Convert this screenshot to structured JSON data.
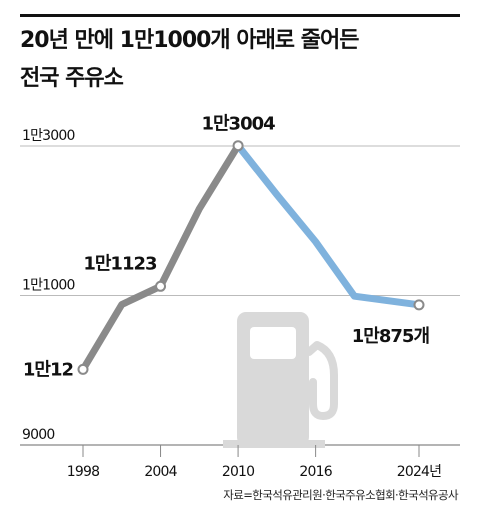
{
  "title_line1": "20년 만에 1만1000개 아래로 줄어든",
  "title_line2": "전국 주유소",
  "source": "자료=한국석유관리원·한국주유소협회·한국석유공사",
  "colors": {
    "text": "#111111",
    "grid": "#bbbbbb",
    "gray_line": "#8a8a8a",
    "blue_line": "#7fb2dd",
    "pump": "#d9d9d9"
  },
  "chart_data": {
    "type": "line",
    "title": "20년 만에 1만1000개 아래로 줄어든 전국 주유소",
    "xlabel": "",
    "ylabel": "",
    "xlim": [
      1998,
      2024
    ],
    "ylim": [
      9000,
      13000
    ],
    "x_ticks": [
      {
        "value": 1998,
        "label": "1998"
      },
      {
        "value": 2004,
        "label": "2004"
      },
      {
        "value": 2010,
        "label": "2010"
      },
      {
        "value": 2016,
        "label": "2016"
      },
      {
        "value": 2024,
        "label": "2024년"
      }
    ],
    "y_ticks": [
      {
        "value": 13000,
        "label": "1만3000"
      },
      {
        "value": 11000,
        "label": "1만1000"
      },
      {
        "value": 9000,
        "label": "9000"
      }
    ],
    "grid": true,
    "series": [
      {
        "name": "",
        "color": "#8a8a8a",
        "points": [
          [
            1998,
            10012
          ],
          [
            2001,
            10880
          ],
          [
            2004,
            11123
          ],
          [
            2007,
            12160
          ],
          [
            2010,
            13004
          ]
        ]
      },
      {
        "name": "",
        "color": "#7fb2dd",
        "points": [
          [
            2010,
            13004
          ],
          [
            2013,
            12350
          ],
          [
            2016,
            11720
          ],
          [
            2019,
            10990
          ],
          [
            2024,
            10875
          ]
        ]
      }
    ],
    "data_labels": [
      {
        "x": 1998,
        "y": 10012,
        "label": "1만12",
        "pos": "left"
      },
      {
        "x": 2004,
        "y": 11123,
        "label": "1만1123",
        "pos": "above-left"
      },
      {
        "x": 2010,
        "y": 13004,
        "label": "1만3004",
        "pos": "above"
      },
      {
        "x": 2024,
        "y": 10875,
        "label": "1만875개",
        "pos": "below"
      }
    ],
    "markers": [
      [
        1998,
        10012
      ],
      [
        2004,
        11123
      ],
      [
        2010,
        13004
      ],
      [
        2024,
        10875
      ]
    ]
  }
}
